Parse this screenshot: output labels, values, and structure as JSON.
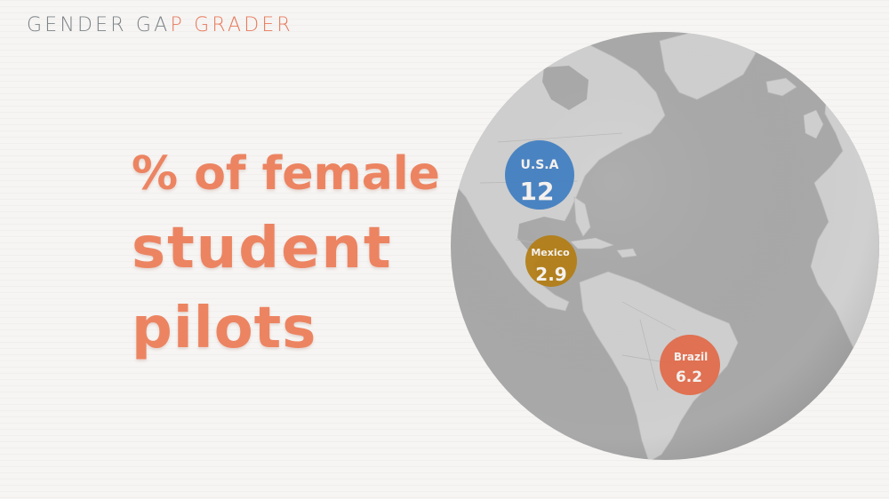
{
  "brand": {
    "part1": "GENDER GA",
    "part2": "P GRADER"
  },
  "headline": {
    "line1": "% of female",
    "line2": "student",
    "line3": "pilots"
  },
  "map": {
    "markers": [
      {
        "country": "U.S.A",
        "value": "12",
        "color": "#3f7dc0"
      },
      {
        "country": "Mexico",
        "value": "2.9",
        "color": "#b37d12"
      },
      {
        "country": "Brazil",
        "value": "6.2",
        "color": "#e06b4b"
      }
    ]
  },
  "colors": {
    "accent": "#ec8462",
    "ocean": "#a9a9a9",
    "land": "#d0d0d0"
  }
}
